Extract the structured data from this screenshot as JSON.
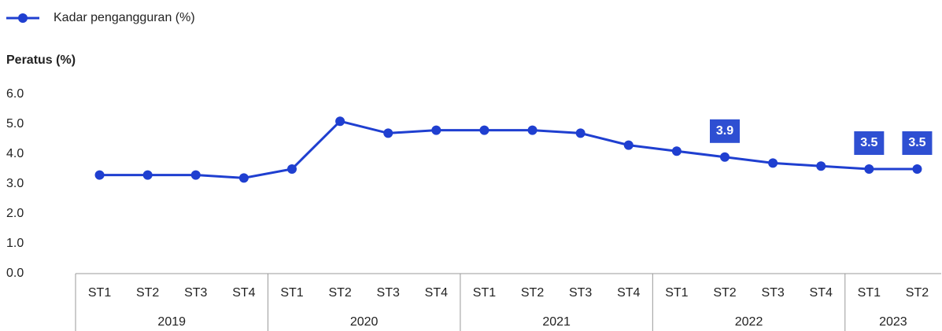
{
  "chart_data": {
    "type": "line",
    "y_axis_title": "Peratus (%)",
    "groups": [
      {
        "name": "2019",
        "categories": [
          "ST1",
          "ST2",
          "ST3",
          "ST4"
        ]
      },
      {
        "name": "2020",
        "categories": [
          "ST1",
          "ST2",
          "ST3",
          "ST4"
        ]
      },
      {
        "name": "2021",
        "categories": [
          "ST1",
          "ST2",
          "ST3",
          "ST4"
        ]
      },
      {
        "name": "2022",
        "categories": [
          "ST1",
          "ST2",
          "ST3",
          "ST4"
        ]
      },
      {
        "name": "2023",
        "categories": [
          "ST1",
          "ST2"
        ]
      }
    ],
    "series": [
      {
        "name": "Kadar pengangguran (%)",
        "color": "#1f3fd0",
        "values": [
          3.3,
          3.3,
          3.3,
          3.2,
          3.5,
          5.1,
          4.7,
          4.8,
          4.8,
          4.8,
          4.7,
          4.3,
          4.1,
          3.9,
          3.7,
          3.6,
          3.5,
          3.5
        ],
        "value_labels": [
          null,
          null,
          null,
          null,
          null,
          null,
          null,
          null,
          null,
          null,
          null,
          null,
          null,
          "3.9",
          null,
          null,
          "3.5",
          "3.5"
        ]
      }
    ],
    "ylim": [
      0,
      6
    ],
    "yticks": [
      {
        "value": 0,
        "label": "0.0"
      },
      {
        "value": 1,
        "label": "1.0"
      },
      {
        "value": 2,
        "label": "2.0"
      },
      {
        "value": 3,
        "label": "3.0"
      },
      {
        "value": 4,
        "label": "4.0"
      },
      {
        "value": 5,
        "label": "5.0"
      },
      {
        "value": 6,
        "label": "6.0"
      }
    ],
    "grid": false,
    "legend": "top-left"
  }
}
